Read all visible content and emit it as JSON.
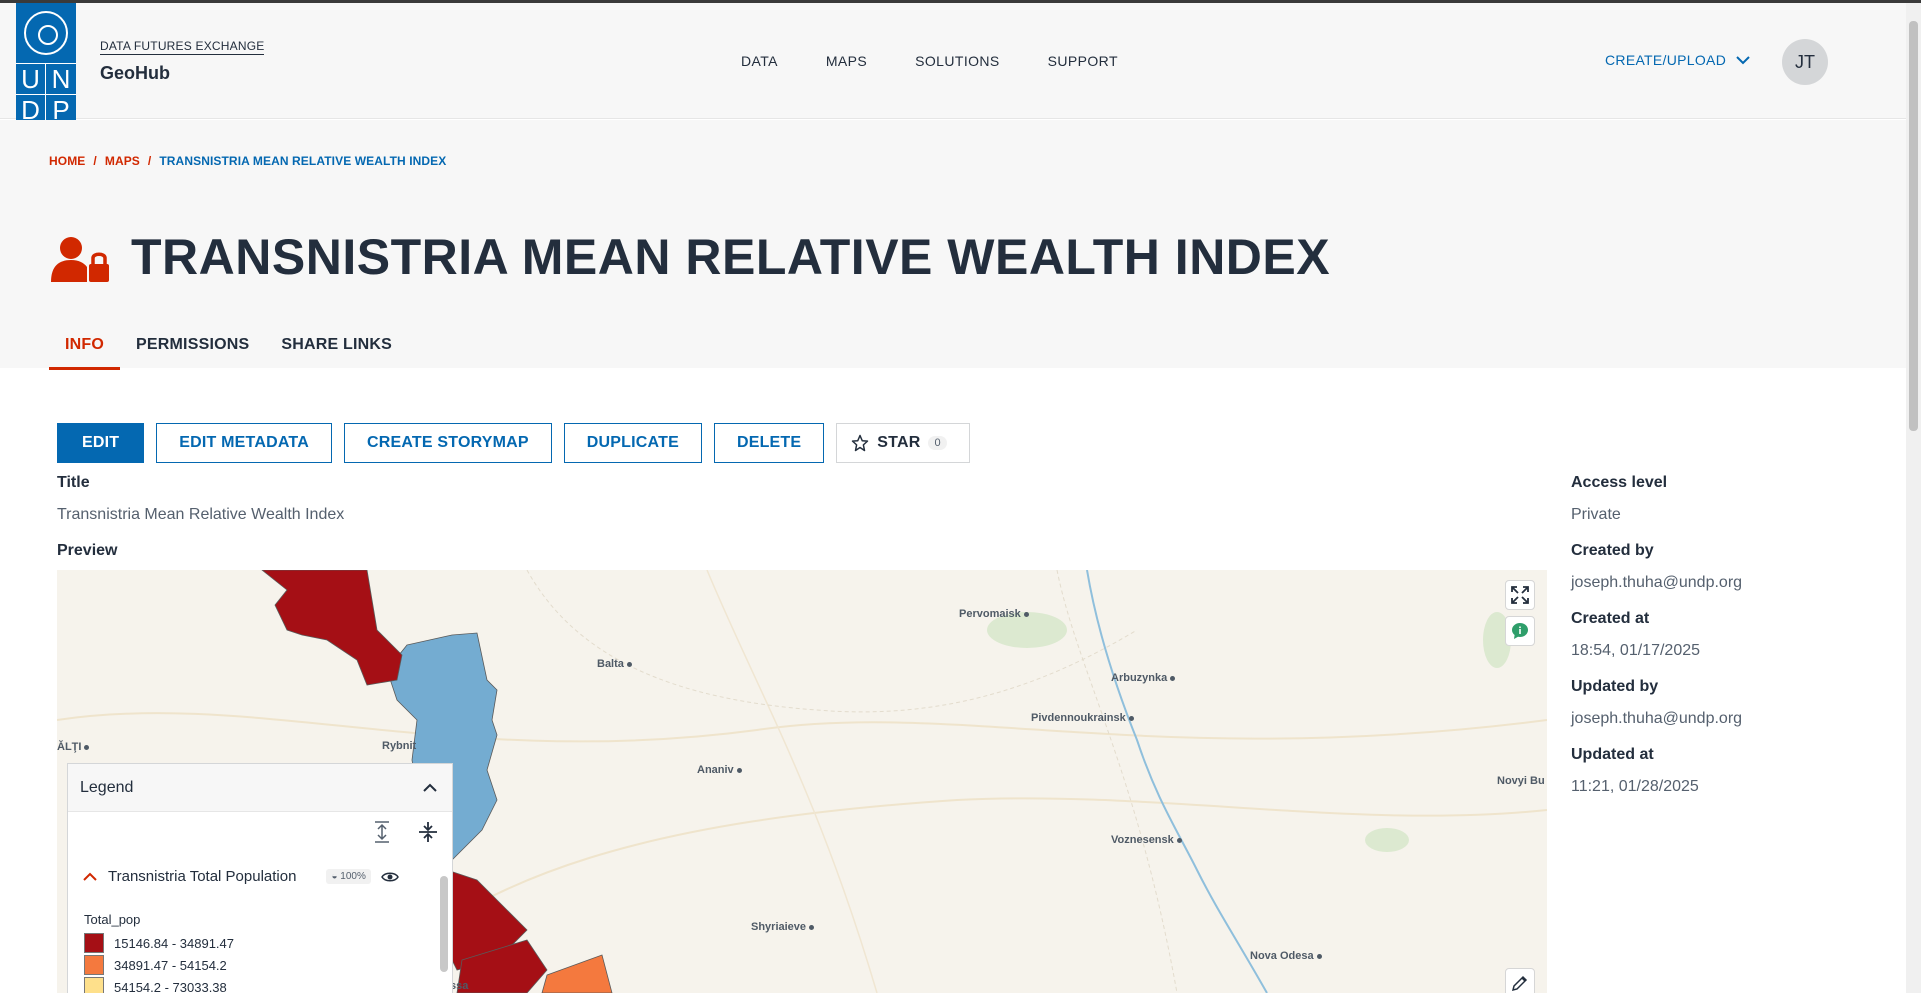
{
  "header": {
    "brand_sub": "DATA FUTURES EXCHANGE",
    "brand_name": "GeoHub",
    "logo_letters": [
      "U",
      "N",
      "D",
      "P"
    ],
    "nav": [
      "DATA",
      "MAPS",
      "SOLUTIONS",
      "SUPPORT"
    ],
    "create_upload": "CREATE/UPLOAD",
    "avatar_initials": "JT"
  },
  "breadcrumb": {
    "home": "HOME",
    "maps": "MAPS",
    "current": "TRANSNISTRIA MEAN RELATIVE WEALTH INDEX",
    "separator": "/"
  },
  "page": {
    "title": "TRANSNISTRIA MEAN RELATIVE WEALTH INDEX",
    "icon": "user-lock-icon"
  },
  "tabs": [
    "INFO",
    "PERMISSIONS",
    "SHARE LINKS"
  ],
  "active_tab": "INFO",
  "actions": {
    "edit": "EDIT",
    "edit_metadata": "EDIT METADATA",
    "create_storymap": "CREATE STORYMAP",
    "duplicate": "DUPLICATE",
    "delete": "DELETE",
    "star": "STAR",
    "star_count": "0"
  },
  "info": {
    "title_label": "Title",
    "title_value": "Transnistria Mean Relative Wealth Index",
    "preview_label": "Preview"
  },
  "meta": {
    "access_label": "Access level",
    "access_value": "Private",
    "created_by_label": "Created by",
    "created_by_value": "joseph.thuha@undp.org",
    "created_at_label": "Created at",
    "created_at_value": "18:54, 01/17/2025",
    "updated_by_label": "Updated by",
    "updated_by_value": "joseph.thuha@undp.org",
    "updated_at_label": "Updated at",
    "updated_at_value": "11:21, 01/28/2025"
  },
  "map": {
    "places": [
      "Pervomaisk",
      "Balta",
      "Arbuzynka",
      "Pivdennoukrainsk",
      "ĂLŢI",
      "Rybnit",
      "Ananiv",
      "Novyi Bu",
      "Voznesensk",
      "Shyriaieve",
      "Nova Odesa",
      "ssa"
    ],
    "controls": [
      "fullscreen-icon",
      "attribution-icon",
      "pencil-icon"
    ]
  },
  "legend": {
    "title": "Legend",
    "layer_name": "Transnistria Total Population",
    "opacity": "100%",
    "field": "Total_pop",
    "classes": [
      {
        "label": "15146.84 - 34891.47",
        "color": "#a50f15"
      },
      {
        "label": "34891.47 - 54154.2",
        "color": "#f4793e"
      },
      {
        "label": "54154.2 - 73033.38",
        "color": "#fee08b"
      }
    ]
  },
  "colors": {
    "accent_red": "#d12800",
    "undp_blue": "#0468b1",
    "water_blue": "#74acd1"
  }
}
